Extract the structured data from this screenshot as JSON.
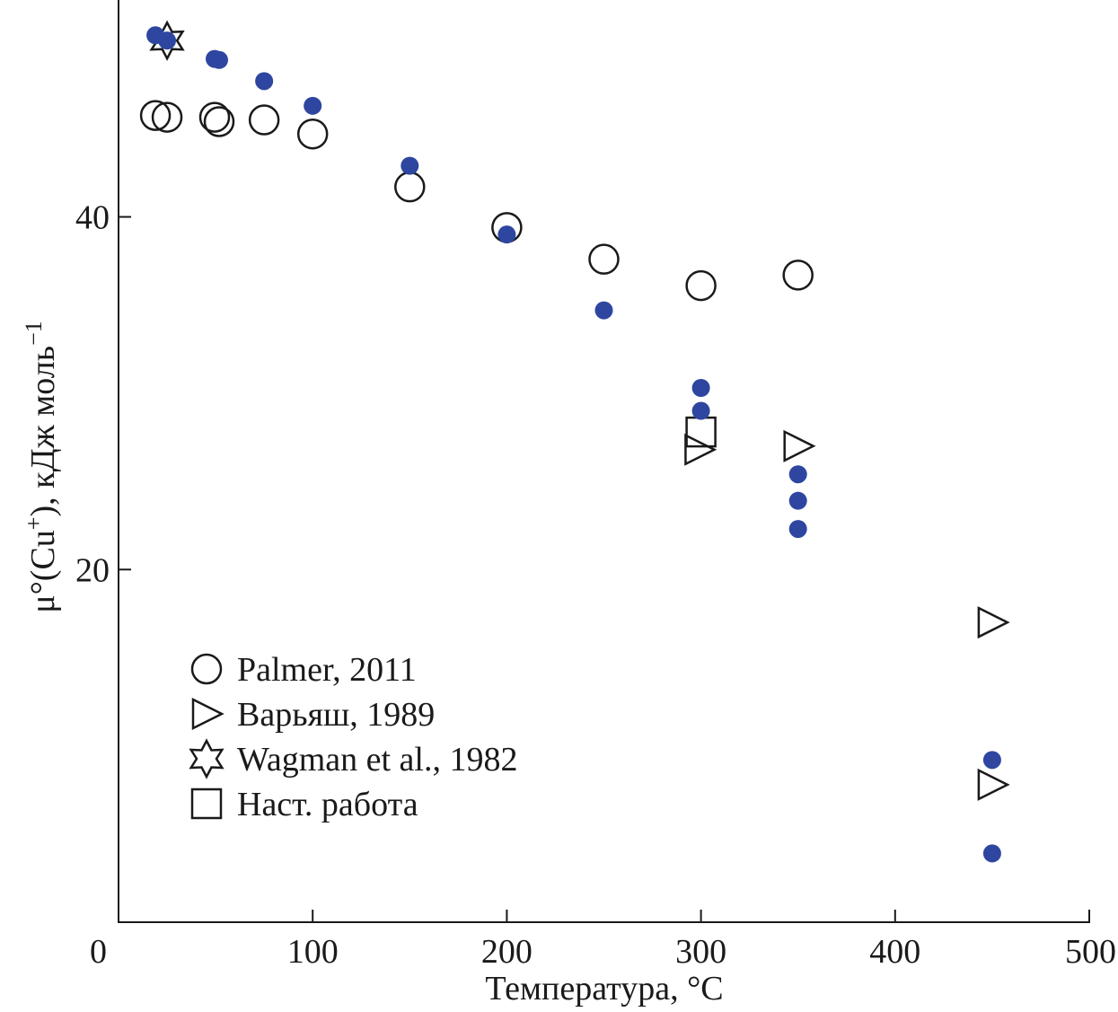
{
  "chart_data": {
    "type": "scatter",
    "title": "",
    "xlabel": "Температура, °C",
    "ylabel": "μ°(Cu⁺), кДж моль⁻¹",
    "ylabel_parts": {
      "base": "μ°(Cu",
      "sup1": "+",
      "mid": "), кДж моль",
      "sup2": "−1"
    },
    "xlim": [
      0,
      500
    ],
    "ylim": [
      0,
      52.3
    ],
    "xticks": [
      0,
      100,
      200,
      300,
      400,
      500
    ],
    "yticks": [
      20,
      40
    ],
    "grid": false,
    "legend_position": "bottom-left",
    "colors": {
      "filled": "#2e46a0",
      "outline": "#1a1a1a"
    },
    "series": [
      {
        "name": "Palmer, 2011",
        "marker": "circle-open",
        "points": [
          [
            19,
            45.75
          ],
          [
            25,
            45.65
          ],
          [
            49.5,
            45.65
          ],
          [
            51.8,
            45.4
          ],
          [
            75,
            45.5
          ],
          [
            100,
            44.7
          ],
          [
            150,
            41.7
          ],
          [
            200,
            39.4
          ],
          [
            250,
            37.6
          ],
          [
            300,
            36.1
          ],
          [
            350,
            36.7
          ]
        ]
      },
      {
        "name": "Варьяш, 1989",
        "marker": "triangle-right-open",
        "points": [
          [
            299,
            26.8
          ],
          [
            350,
            27.0
          ],
          [
            450,
            17.0
          ],
          [
            450,
            7.8
          ]
        ]
      },
      {
        "name": "Wagman et al., 1982",
        "marker": "star-open",
        "points": [
          [
            25,
            50.0
          ]
        ]
      },
      {
        "name": "Наст. работа",
        "marker": "square-open",
        "points": [
          [
            300,
            27.8
          ]
        ]
      },
      {
        "name": "",
        "marker": "circle-filled",
        "points": [
          [
            19,
            50.3
          ],
          [
            25,
            50.0
          ],
          [
            49.5,
            48.96
          ],
          [
            51.8,
            48.9
          ],
          [
            75,
            47.7
          ],
          [
            100,
            46.3
          ],
          [
            150,
            42.9
          ],
          [
            200,
            39.0
          ],
          [
            250,
            34.7
          ],
          [
            300,
            30.3
          ],
          [
            300,
            29.0
          ],
          [
            350,
            25.4
          ],
          [
            350,
            23.9
          ],
          [
            350,
            22.3
          ],
          [
            450,
            9.2
          ],
          [
            450,
            3.9
          ]
        ]
      }
    ]
  }
}
